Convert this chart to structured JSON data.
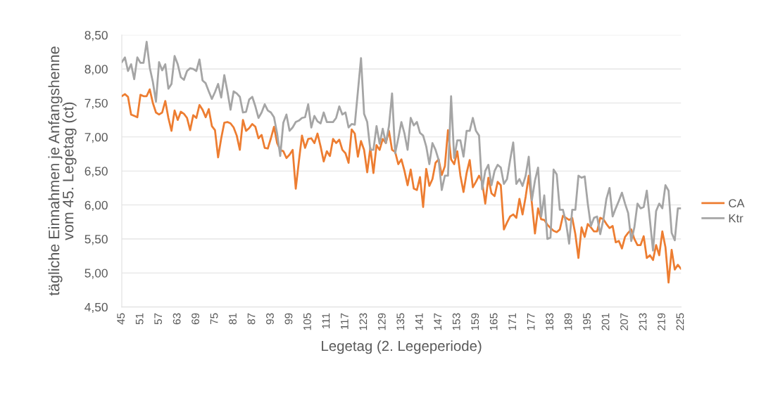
{
  "chart_data": {
    "type": "line",
    "xlabel": "Legetag (2. Legeperiode)",
    "ylabel": "tägliche Einnahmen je Anfangshenne\nvom 45. Legetag (ct)",
    "x": [
      45,
      46,
      47,
      48,
      49,
      50,
      51,
      52,
      53,
      54,
      55,
      56,
      57,
      58,
      59,
      60,
      61,
      62,
      63,
      64,
      65,
      66,
      67,
      68,
      69,
      70,
      71,
      72,
      73,
      74,
      75,
      76,
      77,
      78,
      79,
      80,
      81,
      82,
      83,
      84,
      85,
      86,
      87,
      88,
      89,
      90,
      91,
      92,
      93,
      94,
      95,
      96,
      97,
      98,
      99,
      100,
      101,
      102,
      103,
      104,
      105,
      106,
      107,
      108,
      109,
      110,
      111,
      112,
      113,
      114,
      115,
      116,
      117,
      118,
      119,
      120,
      121,
      122,
      123,
      124,
      125,
      126,
      127,
      128,
      129,
      130,
      131,
      132,
      133,
      134,
      135,
      136,
      137,
      138,
      139,
      140,
      141,
      142,
      143,
      144,
      145,
      146,
      147,
      148,
      149,
      150,
      151,
      152,
      153,
      154,
      155,
      156,
      157,
      158,
      159,
      160,
      161,
      162,
      163,
      164,
      165,
      166,
      167,
      168,
      169,
      170,
      171,
      172,
      173,
      174,
      175,
      176,
      177,
      178,
      179,
      180,
      181,
      182,
      183,
      184,
      185,
      186,
      187,
      188,
      189,
      190,
      191,
      192,
      193,
      194,
      195,
      196,
      197,
      198,
      199,
      200,
      201,
      202,
      203,
      204,
      205,
      206,
      207,
      208,
      209,
      210,
      211,
      212,
      213,
      214,
      215,
      216,
      217,
      218,
      219,
      220,
      221,
      222,
      223,
      224,
      225
    ],
    "xlim": [
      45,
      225
    ],
    "xticks": [
      45,
      51,
      57,
      63,
      69,
      75,
      81,
      87,
      93,
      99,
      105,
      111,
      117,
      123,
      129,
      135,
      141,
      147,
      153,
      159,
      165,
      171,
      177,
      183,
      189,
      195,
      201,
      207,
      213,
      219,
      225
    ],
    "ylim": [
      4.5,
      8.5
    ],
    "yticks": [
      {
        "value": 4.5,
        "label": "4,50"
      },
      {
        "value": 5.0,
        "label": "5,00"
      },
      {
        "value": 5.5,
        "label": "5,50"
      },
      {
        "value": 6.0,
        "label": "6,00"
      },
      {
        "value": 6.5,
        "label": "6,50"
      },
      {
        "value": 7.0,
        "label": "7,00"
      },
      {
        "value": 7.5,
        "label": "7,50"
      },
      {
        "value": 8.0,
        "label": "8,00"
      },
      {
        "value": 8.5,
        "label": "8,50"
      }
    ],
    "grid": "y",
    "legend": "right",
    "series": [
      {
        "name": "CA",
        "color": "#ed7d31",
        "values": [
          7.6,
          7.63,
          7.59,
          7.33,
          7.31,
          7.29,
          7.62,
          7.6,
          7.6,
          7.7,
          7.5,
          7.36,
          7.33,
          7.36,
          7.53,
          7.28,
          7.09,
          7.39,
          7.25,
          7.37,
          7.34,
          7.28,
          7.1,
          7.32,
          7.28,
          7.47,
          7.4,
          7.29,
          7.41,
          7.16,
          7.1,
          6.7,
          6.98,
          7.21,
          7.22,
          7.2,
          7.14,
          7.02,
          6.81,
          7.25,
          7.09,
          7.13,
          7.19,
          7.15,
          6.98,
          7.03,
          6.84,
          6.83,
          6.98,
          7.15,
          6.91,
          6.81,
          6.79,
          6.69,
          6.74,
          6.81,
          6.24,
          6.64,
          7.02,
          6.84,
          6.97,
          6.98,
          6.91,
          7.05,
          6.86,
          6.64,
          6.79,
          6.72,
          6.97,
          6.91,
          6.96,
          6.81,
          6.76,
          6.62,
          7.11,
          7.05,
          6.71,
          6.94,
          6.81,
          6.48,
          6.84,
          6.47,
          6.88,
          6.81,
          6.97,
          6.91,
          7.09,
          6.81,
          6.78,
          6.6,
          6.67,
          6.5,
          6.29,
          6.52,
          6.24,
          6.22,
          6.41,
          5.97,
          6.53,
          6.28,
          6.38,
          6.62,
          6.67,
          6.44,
          6.57,
          7.1,
          6.67,
          6.6,
          6.79,
          6.43,
          6.19,
          6.47,
          6.66,
          6.26,
          6.34,
          6.43,
          6.34,
          6.02,
          6.4,
          6.17,
          6.13,
          6.34,
          6.29,
          5.64,
          5.74,
          5.83,
          5.86,
          5.81,
          6.09,
          5.86,
          6.12,
          6.43,
          6.03,
          5.58,
          5.95,
          5.79,
          5.78,
          5.71,
          5.66,
          5.62,
          5.6,
          5.64,
          5.84,
          5.81,
          5.78,
          5.81,
          5.57,
          5.22,
          5.67,
          5.53,
          5.72,
          5.67,
          5.61,
          5.61,
          5.81,
          5.79,
          5.72,
          5.66,
          5.69,
          5.45,
          5.47,
          5.36,
          5.53,
          5.59,
          5.64,
          5.5,
          5.41,
          5.41,
          5.54,
          5.22,
          5.26,
          5.19,
          5.41,
          5.26,
          5.61,
          5.38,
          4.86,
          5.34,
          5.05,
          5.12,
          5.06
        ]
      },
      {
        "name": "Ktr",
        "color": "#a5a5a5",
        "values": [
          8.1,
          8.17,
          7.97,
          8.07,
          7.85,
          8.17,
          8.09,
          8.09,
          8.4,
          8.02,
          7.81,
          7.52,
          8.1,
          7.98,
          8.07,
          7.71,
          7.78,
          8.19,
          8.07,
          7.88,
          7.84,
          7.97,
          8.01,
          8.0,
          7.97,
          8.14,
          7.83,
          7.79,
          7.67,
          7.56,
          7.66,
          7.78,
          7.58,
          7.91,
          7.67,
          7.4,
          7.67,
          7.64,
          7.59,
          7.36,
          7.37,
          7.55,
          7.59,
          7.45,
          7.28,
          7.36,
          7.48,
          7.39,
          7.36,
          7.29,
          7.05,
          6.72,
          7.21,
          7.33,
          7.09,
          7.14,
          7.22,
          7.24,
          7.28,
          7.29,
          7.48,
          7.14,
          7.31,
          7.23,
          7.2,
          7.36,
          7.22,
          7.22,
          7.22,
          7.28,
          7.45,
          7.33,
          7.36,
          7.14,
          7.19,
          7.18,
          7.67,
          8.16,
          7.34,
          7.22,
          6.81,
          6.81,
          7.16,
          6.9,
          7.12,
          6.91,
          7.16,
          7.64,
          6.76,
          6.98,
          7.22,
          7.05,
          6.81,
          7.28,
          7.17,
          7.22,
          7.06,
          7.02,
          6.86,
          6.6,
          6.91,
          6.81,
          6.66,
          6.22,
          6.43,
          6.43,
          7.6,
          6.69,
          6.95,
          6.95,
          6.71,
          7.09,
          7.09,
          7.28,
          7.09,
          7.02,
          6.23,
          6.5,
          6.59,
          6.29,
          6.5,
          6.59,
          6.55,
          6.31,
          6.38,
          6.66,
          6.92,
          6.31,
          6.38,
          6.28,
          6.43,
          6.71,
          6.07,
          6.36,
          6.55,
          5.83,
          6.14,
          5.5,
          5.52,
          6.52,
          6.45,
          5.93,
          5.93,
          5.74,
          5.43,
          5.93,
          5.93,
          6.43,
          6.4,
          6.42,
          6.02,
          5.69,
          5.81,
          5.83,
          5.57,
          5.78,
          6.09,
          6.25,
          5.83,
          5.95,
          6.06,
          6.18,
          6.02,
          5.88,
          5.47,
          5.67,
          6.02,
          5.95,
          5.97,
          6.21,
          5.78,
          5.33,
          5.91,
          6.02,
          5.95,
          6.29,
          6.21,
          5.59,
          5.48,
          5.95,
          5.95
        ]
      }
    ]
  }
}
